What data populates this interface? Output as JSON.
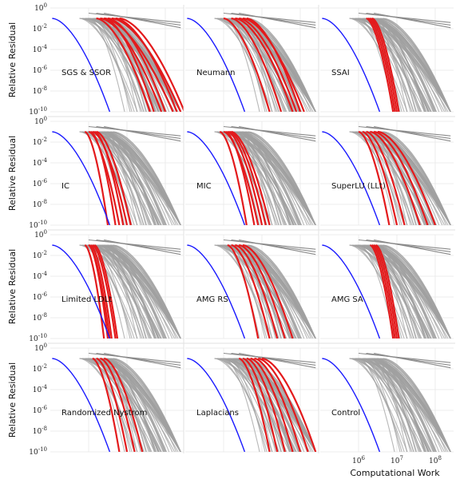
{
  "chart_data": {
    "type": "line",
    "layout_grid": {
      "rows": 4,
      "cols": 3
    },
    "ylabel": "Relative Residual",
    "xlabel": "Computational Work",
    "y_scale": "log",
    "x_scale": "log",
    "ylim": [
      1e-10,
      1
    ],
    "xlim": [
      100000.0,
      300000000.0
    ],
    "y_ticks": [
      "10^0",
      "10^-2",
      "10^-4",
      "10^-6",
      "10^-8",
      "10^-10"
    ],
    "x_ticks": [
      "10^6",
      "10^7",
      "10^8"
    ],
    "grid": true,
    "series_styles": {
      "highlight_color": "#e31a1c",
      "baseline_color": "#1a1aff",
      "background_color": "#a0a0a0"
    },
    "panels": [
      {
        "label": "SGS & SSOR",
        "highlight_log_work": [
          [
            6.2,
            7.6
          ],
          [
            6.4,
            8.2
          ],
          [
            6.3,
            7.9
          ],
          [
            6.6,
            8.4
          ],
          [
            6.5,
            8.0
          ],
          [
            6.8,
            8.5
          ],
          [
            6.4,
            7.7
          ],
          [
            6.7,
            8.3
          ]
        ]
      },
      {
        "label": "Neumann",
        "highlight_log_work": [
          [
            6.0,
            7.2
          ],
          [
            6.3,
            7.8
          ],
          [
            6.2,
            7.5
          ],
          [
            6.5,
            8.1
          ],
          [
            6.4,
            7.9
          ],
          [
            6.6,
            8.0
          ]
        ]
      },
      {
        "label": "SSAI",
        "highlight_log_work": [
          [
            6.2,
            6.9
          ],
          [
            6.3,
            7.0
          ],
          [
            6.25,
            6.95
          ],
          [
            6.35,
            7.05
          ]
        ]
      },
      {
        "label": "IC",
        "highlight_log_work": [
          [
            5.9,
            6.5
          ],
          [
            6.0,
            6.8
          ],
          [
            6.1,
            7.0
          ],
          [
            6.05,
            6.7
          ],
          [
            6.2,
            7.1
          ],
          [
            6.15,
            6.9
          ]
        ]
      },
      {
        "label": "MIC",
        "highlight_log_work": [
          [
            5.9,
            6.6
          ],
          [
            6.0,
            6.9
          ],
          [
            6.1,
            7.0
          ],
          [
            6.2,
            7.2
          ],
          [
            6.05,
            6.8
          ],
          [
            6.15,
            7.1
          ]
        ]
      },
      {
        "label": "SuperLU (LLt)",
        "highlight_log_work": [
          [
            6.0,
            6.8
          ],
          [
            6.2,
            7.2
          ],
          [
            6.3,
            7.6
          ],
          [
            6.4,
            7.8
          ],
          [
            6.1,
            7.0
          ],
          [
            6.5,
            8.0
          ]
        ]
      },
      {
        "label": "Limited LDLt",
        "highlight_log_work": [
          [
            5.9,
            6.4
          ],
          [
            6.0,
            6.5
          ],
          [
            6.05,
            6.6
          ],
          [
            6.1,
            6.7
          ],
          [
            6.0,
            6.55
          ],
          [
            6.15,
            6.75
          ]
        ]
      },
      {
        "label": "AMG RS",
        "highlight_log_work": [
          [
            6.1,
            6.9
          ],
          [
            6.3,
            7.4
          ],
          [
            6.4,
            7.6
          ],
          [
            6.2,
            7.2
          ],
          [
            6.5,
            7.8
          ]
        ]
      },
      {
        "label": "AMG SA",
        "highlight_log_work": [
          [
            6.3,
            6.9
          ],
          [
            6.35,
            6.95
          ],
          [
            6.4,
            7.0
          ],
          [
            6.45,
            7.05
          ]
        ]
      },
      {
        "label": "Randomized Nystrom",
        "highlight_log_work": [
          [
            6.1,
            6.8
          ],
          [
            6.3,
            7.2
          ],
          [
            6.2,
            7.0
          ],
          [
            6.4,
            7.4
          ]
        ]
      },
      {
        "label": "Laplacians",
        "highlight_log_work": [
          [
            6.4,
            7.2
          ],
          [
            6.5,
            7.4
          ],
          [
            6.6,
            7.6
          ],
          [
            6.7,
            7.8
          ],
          [
            6.8,
            8.0
          ],
          [
            6.9,
            8.2
          ],
          [
            7.0,
            8.4
          ]
        ]
      },
      {
        "label": "Control",
        "highlight_log_work": []
      }
    ]
  }
}
